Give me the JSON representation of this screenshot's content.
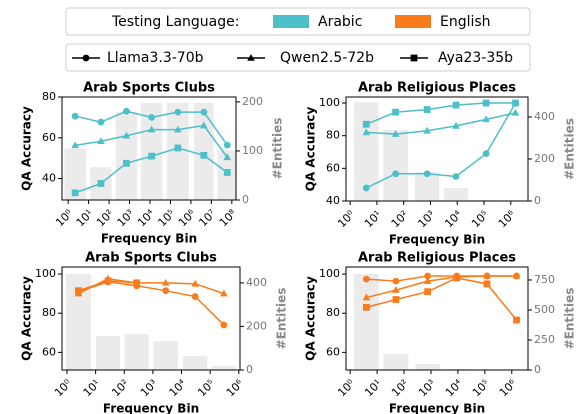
{
  "legend": {
    "title": "Testing Language:",
    "languages": [
      {
        "name": "Arabic",
        "color": "#4cbfc8"
      },
      {
        "name": "English",
        "color": "#f97b1c"
      }
    ]
  },
  "chart_data": [
    {
      "type": "line",
      "title": "Arab Sports Clubs",
      "x_label": "Frequency Bin",
      "y_label": "QA Accuracy",
      "y2_label": "#Entities",
      "xscale": "log",
      "x": [
        2.2,
        40,
        700,
        12000,
        230000,
        4300000,
        60000000
      ],
      "xlim": [
        0.5,
        160000000
      ],
      "xticks": [
        {
          "value": 1,
          "label": "10⁰"
        },
        {
          "value": 10,
          "label": "10¹"
        },
        {
          "value": 100,
          "label": "10²"
        },
        {
          "value": 1000,
          "label": "10³"
        },
        {
          "value": 10000,
          "label": "10⁴"
        },
        {
          "value": 100000,
          "label": "10⁵"
        },
        {
          "value": 1000000,
          "label": "10⁶"
        },
        {
          "value": 10000000,
          "label": "10⁷"
        },
        {
          "value": 100000000,
          "label": "10⁸"
        }
      ],
      "ylim": [
        29.5,
        80
      ],
      "yticks": [
        40,
        60,
        80
      ],
      "y2lim": [
        0,
        210
      ],
      "y2ticks": [
        0,
        100,
        200
      ],
      "bars": {
        "values": [
          105,
          67,
          180,
          198,
          198,
          198,
          102
        ],
        "color": "#ebebeb",
        "axis": "y2"
      },
      "series": [
        {
          "name": "Llama3.3-70b",
          "marker": "circle",
          "color": "#4cbfc8",
          "values": [
            70.6,
            67.7,
            73,
            70,
            72.6,
            72.6,
            56.4
          ]
        },
        {
          "name": "Qwen2.5-72b",
          "marker": "triangle",
          "color": "#4cbfc8",
          "values": [
            56.3,
            58.3,
            61,
            64,
            64,
            66,
            50.4
          ]
        },
        {
          "name": "Aya23-35b",
          "marker": "square",
          "color": "#4cbfc8",
          "values": [
            33,
            37.6,
            47.5,
            51,
            55,
            51.4,
            43
          ]
        }
      ]
    },
    {
      "type": "line",
      "title": "Arab Religious Places",
      "x_label": "Frequency Bin",
      "y_label": "QA Accuracy",
      "y2_label": "#Entities",
      "xscale": "log",
      "x": [
        4,
        50,
        750,
        9000,
        120000,
        1500000
      ],
      "xlim": [
        0.7,
        4400000
      ],
      "xticks": [
        {
          "value": 1,
          "label": "10⁰"
        },
        {
          "value": 10,
          "label": "10¹"
        },
        {
          "value": 100,
          "label": "10²"
        },
        {
          "value": 1000,
          "label": "10³"
        },
        {
          "value": 10000,
          "label": "10⁴"
        },
        {
          "value": 100000,
          "label": "10⁵"
        },
        {
          "value": 1000000,
          "label": "10⁶"
        }
      ],
      "ylim": [
        40,
        103.7
      ],
      "yticks": [
        40,
        60,
        80,
        100
      ],
      "y2lim": [
        0,
        495
      ],
      "y2ticks": [
        0,
        200,
        400
      ],
      "bars": {
        "values": [
          470,
          338,
          138,
          62,
          5,
          3
        ],
        "color": "#ebebeb",
        "axis": "y2"
      },
      "series": [
        {
          "name": "Llama3.3-70b",
          "marker": "circle",
          "color": "#4cbfc8",
          "values": [
            48,
            56.7,
            56.7,
            55,
            69,
            100
          ]
        },
        {
          "name": "Qwen2.5-72b",
          "marker": "triangle",
          "color": "#4cbfc8",
          "values": [
            82,
            81,
            83,
            86,
            90,
            94
          ]
        },
        {
          "name": "Aya23-35b",
          "marker": "square",
          "color": "#4cbfc8",
          "values": [
            87,
            94.4,
            96,
            98.7,
            100,
            100
          ]
        }
      ]
    },
    {
      "type": "line",
      "title": "Arab Sports Clubs",
      "x_label": "Frequency Bin",
      "y_label": "QA Accuracy",
      "y2_label": "#Entities",
      "xscale": "log",
      "x": [
        2.5,
        27,
        270,
        2800,
        30000,
        300000
      ],
      "xlim": [
        0.67,
        1100000
      ],
      "xticks": [
        {
          "value": 1,
          "label": "10⁰"
        },
        {
          "value": 10,
          "label": "10¹"
        },
        {
          "value": 100,
          "label": "10²"
        },
        {
          "value": 1000,
          "label": "10³"
        },
        {
          "value": 10000,
          "label": "10⁴"
        },
        {
          "value": 100000,
          "label": "10⁵"
        },
        {
          "value": 1000000,
          "label": "10⁶"
        }
      ],
      "ylim": [
        51,
        103.6
      ],
      "yticks": [
        60,
        80,
        100
      ],
      "y2lim": [
        0,
        473
      ],
      "y2ticks": [
        0,
        200,
        400
      ],
      "bars": {
        "values": [
          441,
          156,
          165,
          133,
          64,
          18
        ],
        "color": "#ebebeb",
        "axis": "y2"
      },
      "series": [
        {
          "name": "Llama3.3-70b",
          "marker": "circle",
          "color": "#f97b1c",
          "values": [
            91,
            96,
            94,
            91.5,
            88.5,
            74
          ]
        },
        {
          "name": "Qwen2.5-72b",
          "marker": "triangle",
          "color": "#f97b1c",
          "values": [
            90,
            97.6,
            95.5,
            95.5,
            95,
            90
          ]
        },
        {
          "name": "Aya23-35b",
          "marker": "square",
          "color": "#f97b1c",
          "values": [
            91.5,
            96.5,
            95.5,
            null,
            null,
            null
          ]
        }
      ]
    },
    {
      "type": "line",
      "title": "Arab Religious Places",
      "x_label": "Frequency Bin",
      "y_label": "QA Accuracy",
      "y2_label": "#Entities",
      "xscale": "log",
      "x": [
        4,
        50,
        750,
        9000,
        120000,
        1500000
      ],
      "xlim": [
        0.7,
        4000000
      ],
      "xticks": [
        {
          "value": 1,
          "label": "10⁰"
        },
        {
          "value": 10,
          "label": "10¹"
        },
        {
          "value": 100,
          "label": "10²"
        },
        {
          "value": 1000,
          "label": "10³"
        },
        {
          "value": 10000,
          "label": "10⁴"
        },
        {
          "value": 100000,
          "label": "10⁵"
        },
        {
          "value": 1000000,
          "label": "10⁶"
        }
      ],
      "ylim": [
        51,
        103.6
      ],
      "yticks": [
        60,
        80,
        100
      ],
      "y2lim": [
        0,
        858
      ],
      "y2ticks": [
        0,
        250,
        500,
        750
      ],
      "bars": {
        "values": [
          800,
          133,
          50,
          8,
          4,
          3
        ],
        "color": "#ebebeb",
        "axis": "y2"
      },
      "series": [
        {
          "name": "Llama3.3-70b",
          "marker": "circle",
          "color": "#f97b1c",
          "values": [
            97.4,
            96.4,
            99,
            99,
            99,
            99
          ]
        },
        {
          "name": "Qwen2.5-72b",
          "marker": "triangle",
          "color": "#f97b1c",
          "values": [
            88,
            91.8,
            96.4,
            98.5,
            99,
            99
          ]
        },
        {
          "name": "Aya23-35b",
          "marker": "square",
          "color": "#f97b1c",
          "values": [
            83,
            87,
            91,
            98,
            95,
            76.5
          ]
        }
      ]
    }
  ]
}
